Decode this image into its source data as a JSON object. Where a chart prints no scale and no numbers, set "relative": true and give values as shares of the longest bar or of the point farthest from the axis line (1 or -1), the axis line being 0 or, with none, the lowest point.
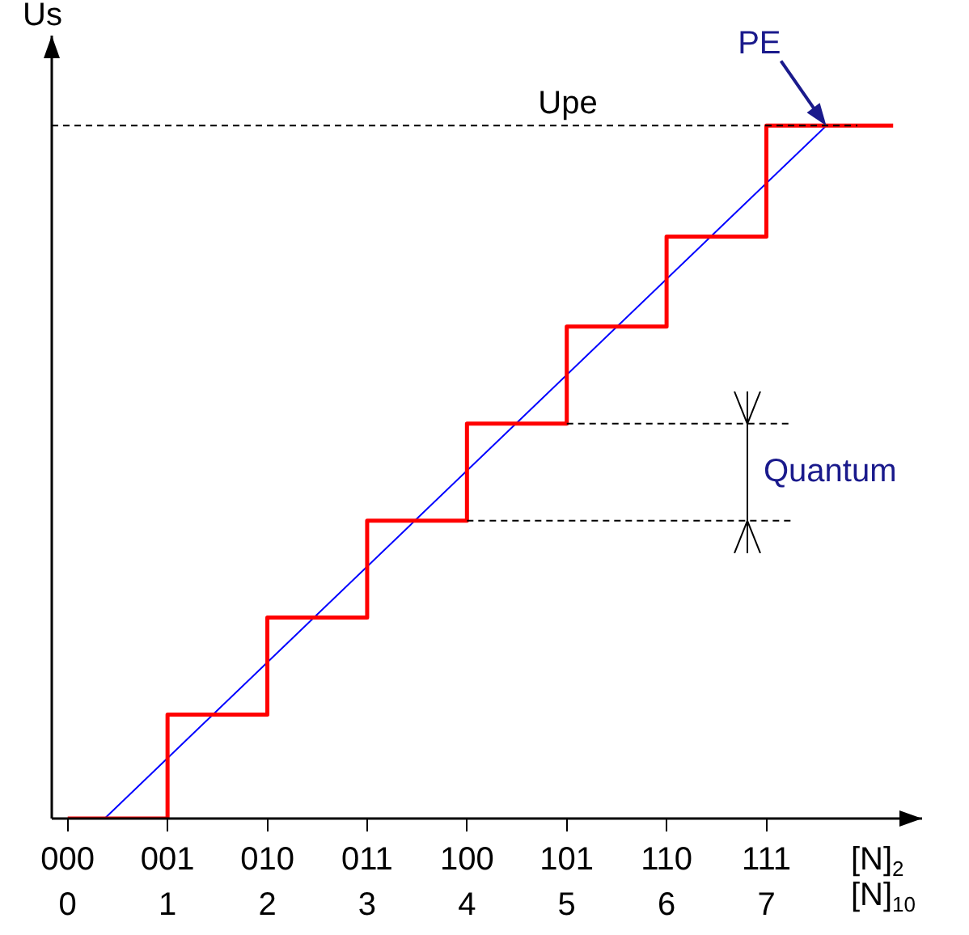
{
  "chart_data": {
    "type": "step",
    "relative": true,
    "ylabel": "Us",
    "xlabel": "[N]$_{10}$",
    "x2label": "[N]$_{2}$",
    "xlim": [
      -0.16,
      8.56
    ],
    "xticks": [
      0,
      1,
      2,
      3,
      4,
      5,
      6,
      7
    ],
    "series": [
      {
        "type": "step",
        "color": "#ff0000",
        "x": [
          0,
          1,
          2,
          3,
          4,
          5,
          6,
          7,
          8.27
        ],
        "values": [
          0,
          0.15,
          0.29,
          0.43,
          0.57,
          0.71,
          0.84,
          1,
          1
        ]
      },
      {
        "type": "line",
        "color": "#0000ff",
        "x": [
          0.37,
          7.6
        ],
        "values": [
          0,
          1
        ]
      }
    ],
    "ref_lines": [
      {
        "axis": "y",
        "value": 1,
        "label": "Upe",
        "color": "#000000",
        "line_style": "dashed"
      },
      {
        "axis": "y",
        "value": 0.57,
        "label": null,
        "color": "#000000",
        "line_style": "dashed"
      },
      {
        "axis": "y",
        "value": 0.43,
        "label": null,
        "color": "#000000",
        "line_style": "dashed"
      }
    ],
    "annotations": [
      "Quantum",
      {
        "text": "PE",
        "x": 7.6,
        "y": 1
      },
      "000",
      "001",
      "010",
      "011",
      "100",
      "101",
      "110",
      "111"
    ],
    "grid": false,
    "legend": false,
    "marker": "none"
  }
}
